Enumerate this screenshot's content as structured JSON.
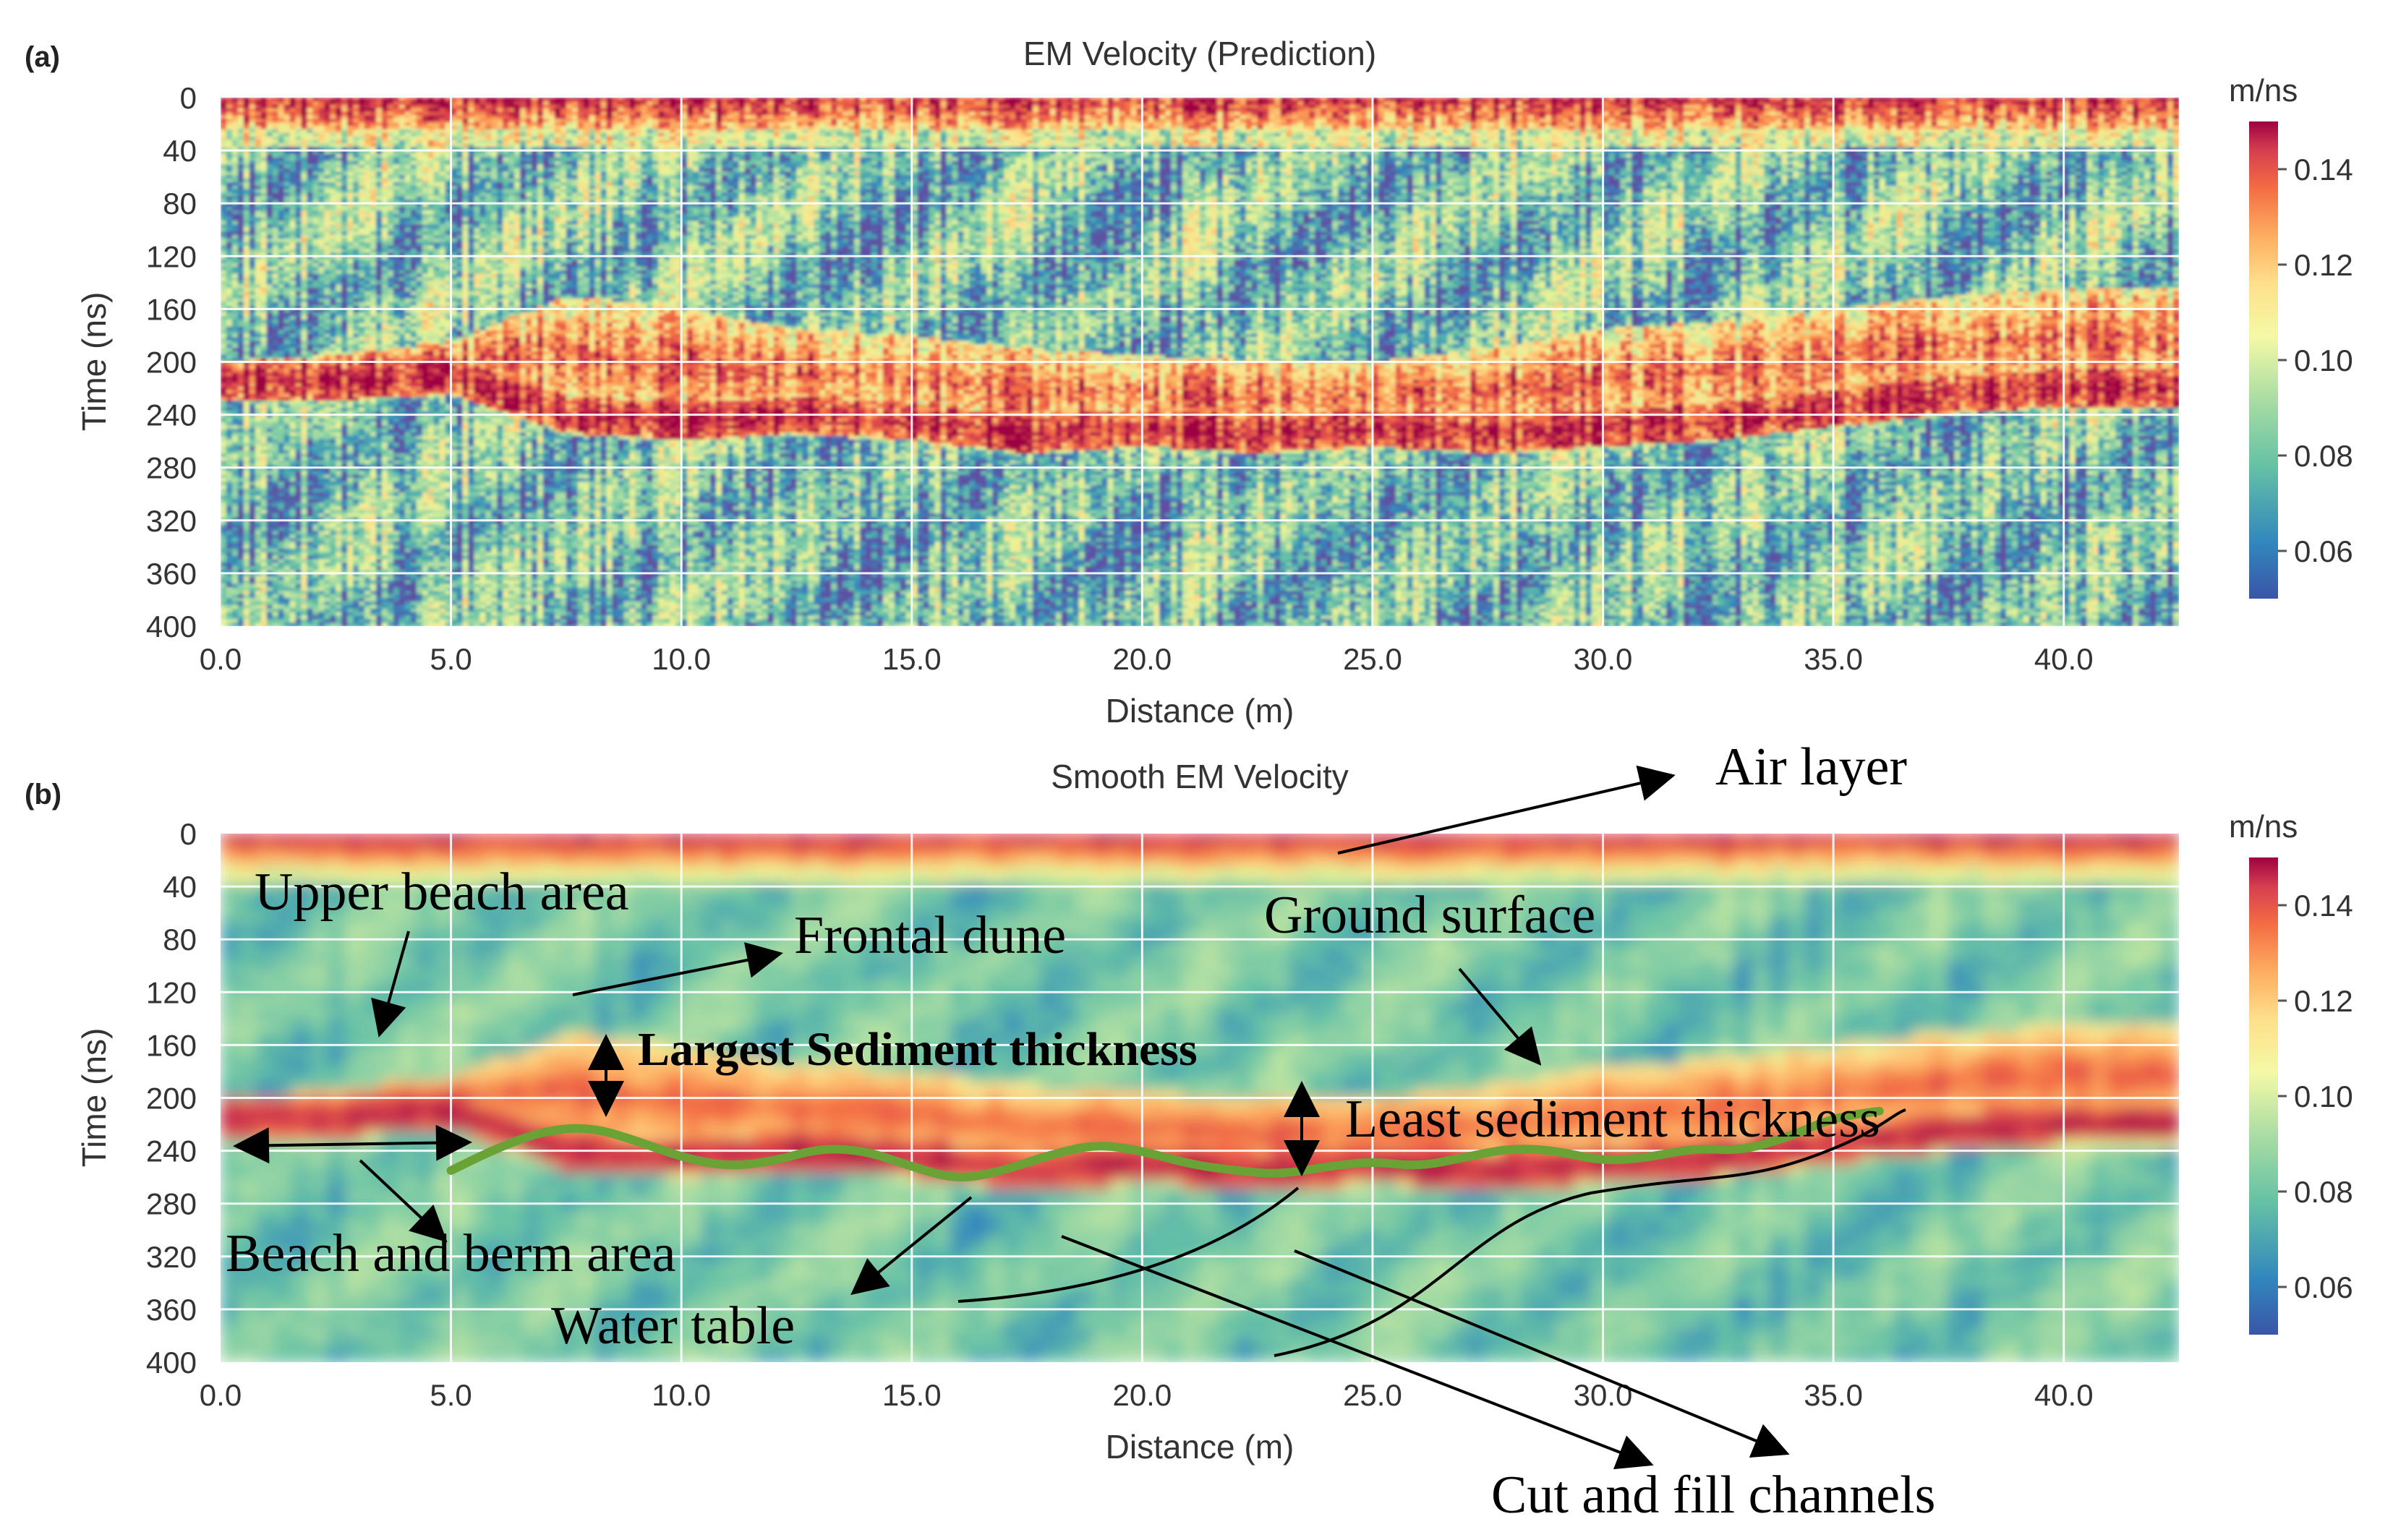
{
  "chart_data": [
    {
      "type": "heatmap",
      "panel_label": "(a)",
      "title": "EM Velocity (Prediction)",
      "xlabel": "Distance (m)",
      "ylabel": "Time (ns)",
      "xlim": [
        0.0,
        42.5
      ],
      "ylim": [
        0,
        400
      ],
      "x_ticks": [
        "0.0",
        "5.0",
        "10.0",
        "15.0",
        "20.0",
        "25.0",
        "30.0",
        "35.0",
        "40.0"
      ],
      "y_ticks": [
        "0",
        "40",
        "80",
        "120",
        "160",
        "200",
        "240",
        "280",
        "320",
        "360",
        "400"
      ],
      "grid": true,
      "colorbar": {
        "label": "m/ns",
        "range": [
          0.05,
          0.15
        ],
        "ticks": [
          "0.14",
          "0.12",
          "0.10",
          "0.08",
          "0.06"
        ]
      },
      "high_velocity_layers": {
        "distance_m": [
          0,
          2.5,
          5,
          7.5,
          10,
          12.5,
          15,
          17.5,
          20,
          22.5,
          25,
          27.5,
          30,
          32.5,
          35,
          37.5,
          40,
          42.5
        ],
        "surface_band_ns": [
          0,
          25
        ],
        "upper_layer_top_ns": [
          200,
          195,
          185,
          150,
          160,
          175,
          180,
          190,
          195,
          200,
          200,
          190,
          175,
          170,
          160,
          150,
          145,
          145
        ],
        "water_table_ns": [
          215,
          215,
          210,
          240,
          245,
          240,
          245,
          255,
          250,
          255,
          250,
          255,
          250,
          245,
          235,
          225,
          220,
          220
        ]
      }
    },
    {
      "type": "heatmap",
      "panel_label": "(b)",
      "title": "Smooth EM Velocity",
      "xlabel": "Distance (m)",
      "ylabel": "Time (ns)",
      "xlim": [
        0.0,
        42.5
      ],
      "ylim": [
        0,
        400
      ],
      "x_ticks": [
        "0.0",
        "5.0",
        "10.0",
        "15.0",
        "20.0",
        "25.0",
        "30.0",
        "35.0",
        "40.0"
      ],
      "y_ticks": [
        "0",
        "40",
        "80",
        "120",
        "160",
        "200",
        "240",
        "280",
        "320",
        "360",
        "400"
      ],
      "grid": true,
      "colorbar": {
        "label": "m/ns",
        "range": [
          0.05,
          0.15
        ],
        "ticks": [
          "0.14",
          "0.12",
          "0.10",
          "0.08",
          "0.06"
        ]
      },
      "water_table_line": {
        "distance_m": [
          5,
          6,
          7,
          8,
          9,
          10,
          11,
          12,
          13,
          14,
          15,
          16,
          17,
          18,
          19,
          20,
          21,
          22,
          23,
          24,
          25,
          26,
          27,
          28,
          29,
          30,
          31,
          32,
          33,
          34,
          35,
          36
        ],
        "time_ns": [
          255,
          238,
          225,
          222,
          232,
          245,
          252,
          248,
          238,
          240,
          252,
          262,
          255,
          243,
          235,
          240,
          250,
          255,
          258,
          252,
          248,
          252,
          245,
          238,
          240,
          248,
          245,
          238,
          240,
          230,
          215,
          210
        ]
      },
      "annotations": [
        "Air layer",
        "Upper beach area",
        "Frontal dune",
        "Ground surface",
        "Largest Sediment thickness",
        "Least sediment thickness",
        "Beach and berm area",
        "Water table",
        "Cut and fill channels"
      ]
    }
  ],
  "colors": {
    "line": "#6aa236",
    "stops": [
      "#5e4fa2",
      "#3288bd",
      "#66c2a5",
      "#abdda4",
      "#e6f598",
      "#fee08b",
      "#fdae61",
      "#f46d43",
      "#d53e4f",
      "#9e0142"
    ]
  }
}
